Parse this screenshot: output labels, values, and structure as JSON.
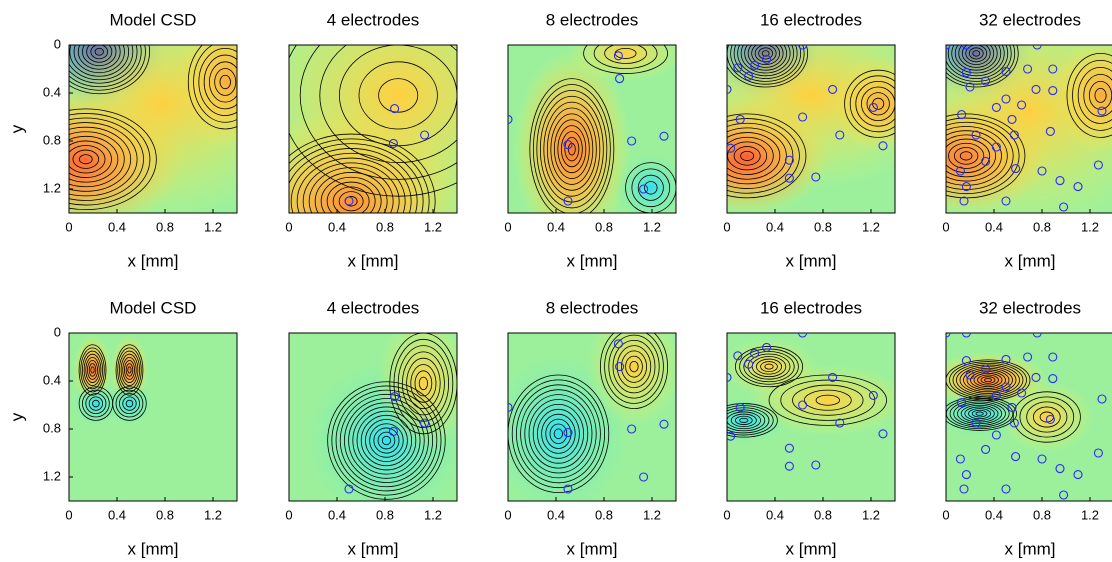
{
  "chart_data": [
    {
      "type": "contour",
      "title": "Model CSD",
      "xlabel": "x [mm]",
      "ylabel": "y",
      "xlim": [
        0,
        1.4
      ],
      "ylim": [
        0,
        1.4
      ],
      "xticks": [
        0,
        0.4,
        0.8,
        1.2
      ],
      "yticks": [
        0,
        0.4,
        0.8,
        1.2
      ],
      "y_reversed": true
    },
    {
      "type": "contour",
      "title": "4 electrodes",
      "xlabel": "x [mm]",
      "xlim": [
        0,
        1.4
      ],
      "ylim": [
        0,
        1.4
      ],
      "xticks": [
        0,
        0.4,
        0.8,
        1.2
      ],
      "y_reversed": true,
      "electrode_color": "#2a2aff",
      "electrodes": {
        "x": [
          0.88,
          0.87,
          1.13,
          0.5
        ],
        "y": [
          0.53,
          0.82,
          0.75,
          1.3
        ]
      }
    },
    {
      "type": "contour",
      "title": "8 electrodes",
      "xlabel": "x [mm]",
      "xlim": [
        0,
        1.4
      ],
      "ylim": [
        0,
        1.4
      ],
      "xticks": [
        0,
        0.4,
        0.8,
        1.2
      ],
      "y_reversed": true,
      "electrode_color": "#2a2aff",
      "electrodes": {
        "x": [
          0.92,
          0.93,
          0,
          0.5,
          1.03,
          1.3,
          1.13,
          0.5
        ],
        "y": [
          0.09,
          0.28,
          0.62,
          0.83,
          0.8,
          0.76,
          1.2,
          1.3
        ]
      }
    },
    {
      "type": "contour",
      "title": "16 electrodes",
      "xlabel": "x [mm]",
      "xlim": [
        0,
        1.4
      ],
      "ylim": [
        0,
        1.4
      ],
      "xticks": [
        0,
        0.4,
        0.8,
        1.2
      ],
      "y_reversed": true,
      "electrode_color": "#2a2aff",
      "electrodes": {
        "x": [
          0.63,
          0.33,
          0.09,
          0.18,
          0.23,
          0,
          0.88,
          1.22,
          0.11,
          0.63,
          0.03,
          0.94,
          1.3,
          0.52,
          0.52,
          0.74
        ],
        "y": [
          0,
          0.12,
          0.19,
          0.26,
          0.17,
          0.37,
          0.37,
          0.52,
          0.62,
          0.6,
          0.86,
          0.75,
          0.84,
          0.96,
          1.11,
          1.1
        ]
      }
    },
    {
      "type": "contour",
      "title": "32 electrodes",
      "xlabel": "x [mm]",
      "xlim": [
        0,
        1.4
      ],
      "ylim": [
        0,
        1.4
      ],
      "xticks": [
        0,
        0.4,
        0.8,
        1.2
      ],
      "y_reversed": true,
      "electrode_color": "#2a2aff",
      "electrodes": {
        "x": [
          0,
          0.17,
          0.76,
          0.17,
          0.5,
          0.68,
          0.89,
          0.89,
          0.2,
          0.33,
          0.75,
          0.5,
          0.63,
          0.13,
          0.42,
          0.55,
          1.3,
          0.25,
          0.57,
          0.87,
          0.42,
          0.33,
          0.58,
          0.12,
          0.8,
          1.27,
          0.17,
          0.5,
          0.95,
          1.1,
          0.98,
          0.15
        ],
        "y": [
          0,
          0,
          0,
          0.23,
          0.22,
          0.2,
          0.2,
          0.38,
          0.35,
          0.3,
          0.37,
          0.45,
          0.5,
          0.58,
          0.52,
          0.62,
          0.55,
          0.75,
          0.75,
          0.72,
          0.85,
          0.97,
          1.03,
          1.05,
          1.05,
          1.0,
          1.18,
          1.3,
          1.13,
          1.18,
          1.35,
          1.3
        ]
      }
    },
    {
      "type": "contour",
      "title": "Model CSD",
      "xlabel": "x [mm]",
      "ylabel": "y",
      "xlim": [
        0,
        1.4
      ],
      "ylim": [
        0,
        1.4
      ],
      "xticks": [
        0,
        0.4,
        0.8,
        1.2
      ],
      "yticks": [
        0,
        0.4,
        0.8,
        1.2
      ],
      "y_reversed": true
    },
    {
      "type": "contour",
      "title": "4 electrodes",
      "xlabel": "x [mm]",
      "xlim": [
        0,
        1.4
      ],
      "ylim": [
        0,
        1.4
      ],
      "xticks": [
        0,
        0.4,
        0.8,
        1.2
      ],
      "y_reversed": true,
      "electrode_color": "#2a2aff",
      "electrodes": {
        "x": [
          0.88,
          0.87,
          1.13,
          0.5
        ],
        "y": [
          0.53,
          0.82,
          0.75,
          1.3
        ]
      }
    },
    {
      "type": "contour",
      "title": "8 electrodes",
      "xlabel": "x [mm]",
      "xlim": [
        0,
        1.4
      ],
      "ylim": [
        0,
        1.4
      ],
      "xticks": [
        0,
        0.4,
        0.8,
        1.2
      ],
      "y_reversed": true,
      "electrode_color": "#2a2aff",
      "electrodes": {
        "x": [
          0.92,
          0.93,
          0,
          0.5,
          1.03,
          1.3,
          1.13,
          0.5
        ],
        "y": [
          0.09,
          0.28,
          0.62,
          0.83,
          0.8,
          0.76,
          1.2,
          1.3
        ]
      }
    },
    {
      "type": "contour",
      "title": "16 electrodes",
      "xlabel": "x [mm]",
      "xlim": [
        0,
        1.4
      ],
      "ylim": [
        0,
        1.4
      ],
      "xticks": [
        0,
        0.4,
        0.8,
        1.2
      ],
      "y_reversed": true,
      "electrode_color": "#2a2aff",
      "electrodes": {
        "x": [
          0.63,
          0.33,
          0.09,
          0.18,
          0.23,
          0,
          0.88,
          1.22,
          0.11,
          0.63,
          0.03,
          0.94,
          1.3,
          0.52,
          0.52,
          0.74
        ],
        "y": [
          0,
          0.12,
          0.19,
          0.26,
          0.17,
          0.37,
          0.37,
          0.52,
          0.62,
          0.6,
          0.86,
          0.75,
          0.84,
          0.96,
          1.11,
          1.1
        ]
      }
    },
    {
      "type": "contour",
      "title": "32 electrodes",
      "xlabel": "x [mm]",
      "xlim": [
        0,
        1.4
      ],
      "ylim": [
        0,
        1.4
      ],
      "xticks": [
        0,
        0.4,
        0.8,
        1.2
      ],
      "y_reversed": true,
      "electrode_color": "#2a2aff",
      "electrodes": {
        "x": [
          0,
          0.17,
          0.76,
          0.17,
          0.5,
          0.68,
          0.89,
          0.89,
          0.2,
          0.33,
          0.75,
          0.5,
          0.63,
          0.13,
          0.42,
          0.55,
          1.3,
          0.25,
          0.57,
          0.87,
          0.42,
          0.33,
          0.58,
          0.12,
          0.8,
          1.27,
          0.17,
          0.5,
          0.95,
          1.1,
          0.98,
          0.15
        ],
        "y": [
          0,
          0,
          0,
          0.23,
          0.22,
          0.2,
          0.2,
          0.38,
          0.35,
          0.3,
          0.37,
          0.45,
          0.5,
          0.58,
          0.52,
          0.62,
          0.55,
          0.75,
          0.75,
          0.72,
          0.85,
          0.97,
          1.03,
          1.05,
          1.05,
          1.0,
          1.18,
          1.3,
          1.13,
          1.18,
          1.35,
          1.3
        ]
      }
    }
  ]
}
